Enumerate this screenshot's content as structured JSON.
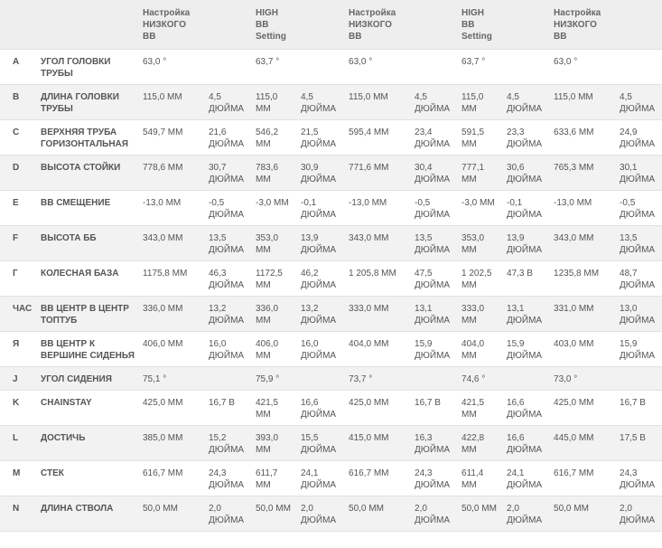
{
  "header": {
    "columns": [
      "Настройка\nНИЗКОГО\nBB",
      "HIGH\nBB\nSetting",
      "Настройка\nНИЗКОГО\nBB",
      "HIGH\nBB\nSetting",
      "Настройка\nНИЗКОГО\nBB"
    ]
  },
  "table": {
    "rows": [
      {
        "letter": "A",
        "name": "УГОЛ ГОЛОВКИ ТРУБЫ",
        "cells": [
          "63,0 °",
          null,
          "63,7 °",
          null,
          "63,0 °",
          null,
          "63,7 °",
          null,
          "63,0 °",
          null
        ]
      },
      {
        "letter": "B",
        "name": "ДЛИНА ГОЛОВКИ ТРУБЫ",
        "cells": [
          "115,0 ММ",
          "4,5 ДЮЙМА",
          "115,0 ММ",
          "4,5 ДЮЙМА",
          "115,0 ММ",
          "4,5 ДЮЙМА",
          "115,0 ММ",
          "4,5 ДЮЙМА",
          "115,0 ММ",
          "4,5 ДЮЙМА"
        ]
      },
      {
        "letter": "C",
        "name": "ВЕРХНЯЯ ТРУБА ГОРИЗОНТАЛЬНАЯ",
        "cells": [
          "549,7 ММ",
          "21,6 ДЮЙМА",
          "546,2 ММ",
          "21,5 ДЮЙМА",
          "595,4 ММ",
          "23,4 ДЮЙМА",
          "591,5 ММ",
          "23,3 ДЮЙМА",
          "633,6 ММ",
          "24,9 ДЮЙМА"
        ]
      },
      {
        "letter": "D",
        "name": "ВЫСОТА СТОЙКИ",
        "cells": [
          "778,6 ММ",
          "30,7 ДЮЙМА",
          "783,6 ММ",
          "30,9 ДЮЙМА",
          "771,6 ММ",
          "30,4 ДЮЙМА",
          "777,1 ММ",
          "30,6 ДЮЙМА",
          "765,3 ММ",
          "30,1 ДЮЙМА"
        ]
      },
      {
        "letter": "E",
        "name": "BB СМЕЩЕНИЕ",
        "cells": [
          "-13,0 ММ",
          "-0,5 ДЮЙМА",
          "-3,0 ММ",
          "-0,1 ДЮЙМА",
          "-13,0 ММ",
          "-0,5 ДЮЙМА",
          "-3,0 ММ",
          "-0,1 ДЮЙМА",
          "-13,0 ММ",
          "-0,5 ДЮЙМА"
        ]
      },
      {
        "letter": "F",
        "name": "ВЫСОТА ББ",
        "cells": [
          "343,0 ММ",
          "13,5 ДЮЙМА",
          "353,0 ММ",
          "13,9 ДЮЙМА",
          "343,0 ММ",
          "13,5 ДЮЙМА",
          "353,0 ММ",
          "13,9 ДЮЙМА",
          "343,0 ММ",
          "13,5 ДЮЙМА"
        ]
      },
      {
        "letter": "Г",
        "name": "КОЛЕСНАЯ БАЗА",
        "cells": [
          "1175,8 ММ",
          "46,3 ДЮЙМА",
          "1172,5 ММ",
          "46,2 ДЮЙМА",
          "1 205,8 ММ",
          "47,5 ДЮЙМА",
          "1 202,5 ММ",
          "47,3 В",
          "1235,8 ММ",
          "48,7 ДЮЙМА"
        ]
      },
      {
        "letter": "ЧАС",
        "name": "BB ЦЕНТР В ЦЕНТР ТОПТУБ",
        "cells": [
          "336,0 ММ",
          "13,2 ДЮЙМА",
          "336,0 ММ",
          "13,2 ДЮЙМА",
          "333,0 ММ",
          "13,1 ДЮЙМА",
          "333,0 ММ",
          "13,1 ДЮЙМА",
          "331,0 ММ",
          "13,0 ДЮЙМА"
        ]
      },
      {
        "letter": "Я",
        "name": "BB ЦЕНТР К ВЕРШИНЕ СИДЕНЬЯ",
        "cells": [
          "406,0 ММ",
          "16,0 ДЮЙМА",
          "406,0 ММ",
          "16,0 ДЮЙМА",
          "404,0 ММ",
          "15,9 ДЮЙМА",
          "404,0 ММ",
          "15,9 ДЮЙМА",
          "403,0 ММ",
          "15,9 ДЮЙМА"
        ]
      },
      {
        "letter": "J",
        "name": "УГОЛ СИДЕНИЯ",
        "cells": [
          "75,1 °",
          null,
          "75,9 °",
          null,
          "73,7 °",
          null,
          "74,6 °",
          null,
          "73,0 °",
          null
        ]
      },
      {
        "letter": "K",
        "name": "CHAINSTAY",
        "cells": [
          "425,0 ММ",
          "16,7 В",
          "421,5 ММ",
          "16,6 ДЮЙМА",
          "425,0 ММ",
          "16,7 В",
          "421,5 ММ",
          "16,6 ДЮЙМА",
          "425,0 ММ",
          "16,7 В"
        ]
      },
      {
        "letter": "L",
        "name": "ДОСТИЧЬ",
        "cells": [
          "385,0 ММ",
          "15,2 ДЮЙМА",
          "393,0 ММ",
          "15,5 ДЮЙМА",
          "415,0 ММ",
          "16,3 ДЮЙМА",
          "422,8 ММ",
          "16,6 ДЮЙМА",
          "445,0 ММ",
          "17,5 В"
        ]
      },
      {
        "letter": "M",
        "name": "СТЕК",
        "cells": [
          "616,7 ММ",
          "24,3 ДЮЙМА",
          "611,7 ММ",
          "24,1 ДЮЙМА",
          "616,7 ММ",
          "24,3 ДЮЙМА",
          "611,4 ММ",
          "24,1 ДЮЙМА",
          "616,7 ММ",
          "24,3 ДЮЙМА"
        ]
      },
      {
        "letter": "N",
        "name": "ДЛИНА СТВОЛА",
        "cells": [
          "50,0 ММ",
          "2,0 ДЮЙМА",
          "50,0 ММ",
          "2,0 ДЮЙМА",
          "50,0 ММ",
          "2,0 ДЮЙМА",
          "50,0 ММ",
          "2,0 ДЮЙМА",
          "50,0 ММ",
          "2,0 ДЮЙМА"
        ]
      }
    ]
  }
}
